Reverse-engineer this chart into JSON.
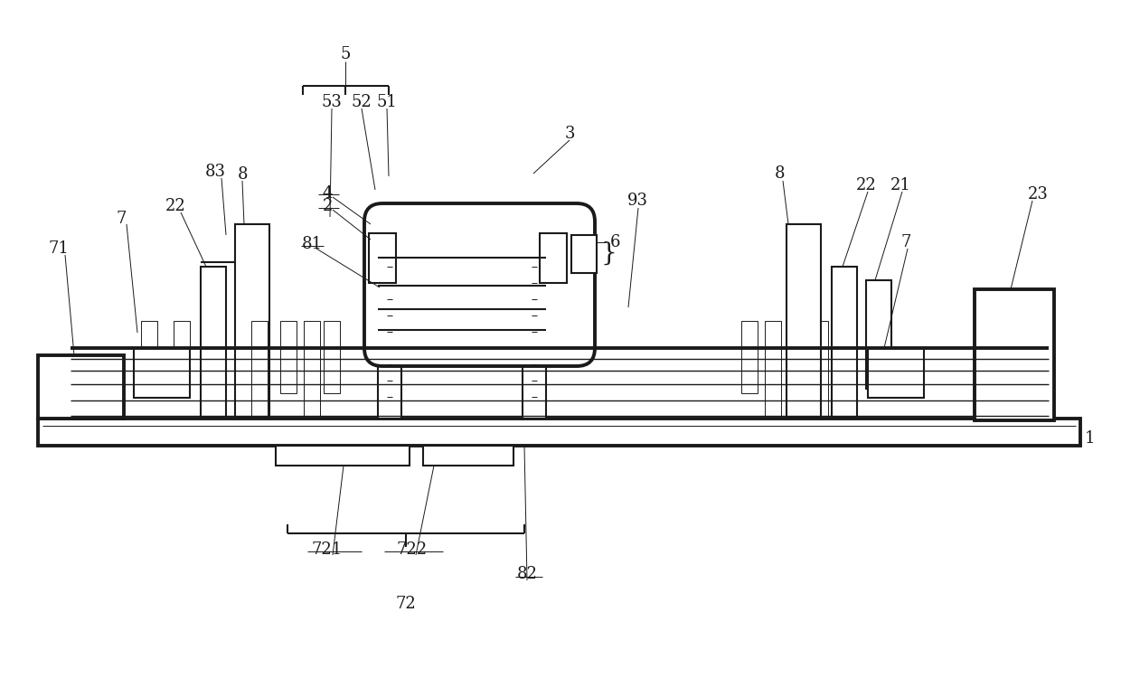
{
  "bg": "#ffffff",
  "lc": "#1a1a1a",
  "lw": 1.5,
  "lw2": 2.8,
  "lw1": 1.0,
  "lw0": 0.7,
  "fs": 13,
  "fig_w": 12.4,
  "fig_h": 7.5,
  "dpi": 100
}
